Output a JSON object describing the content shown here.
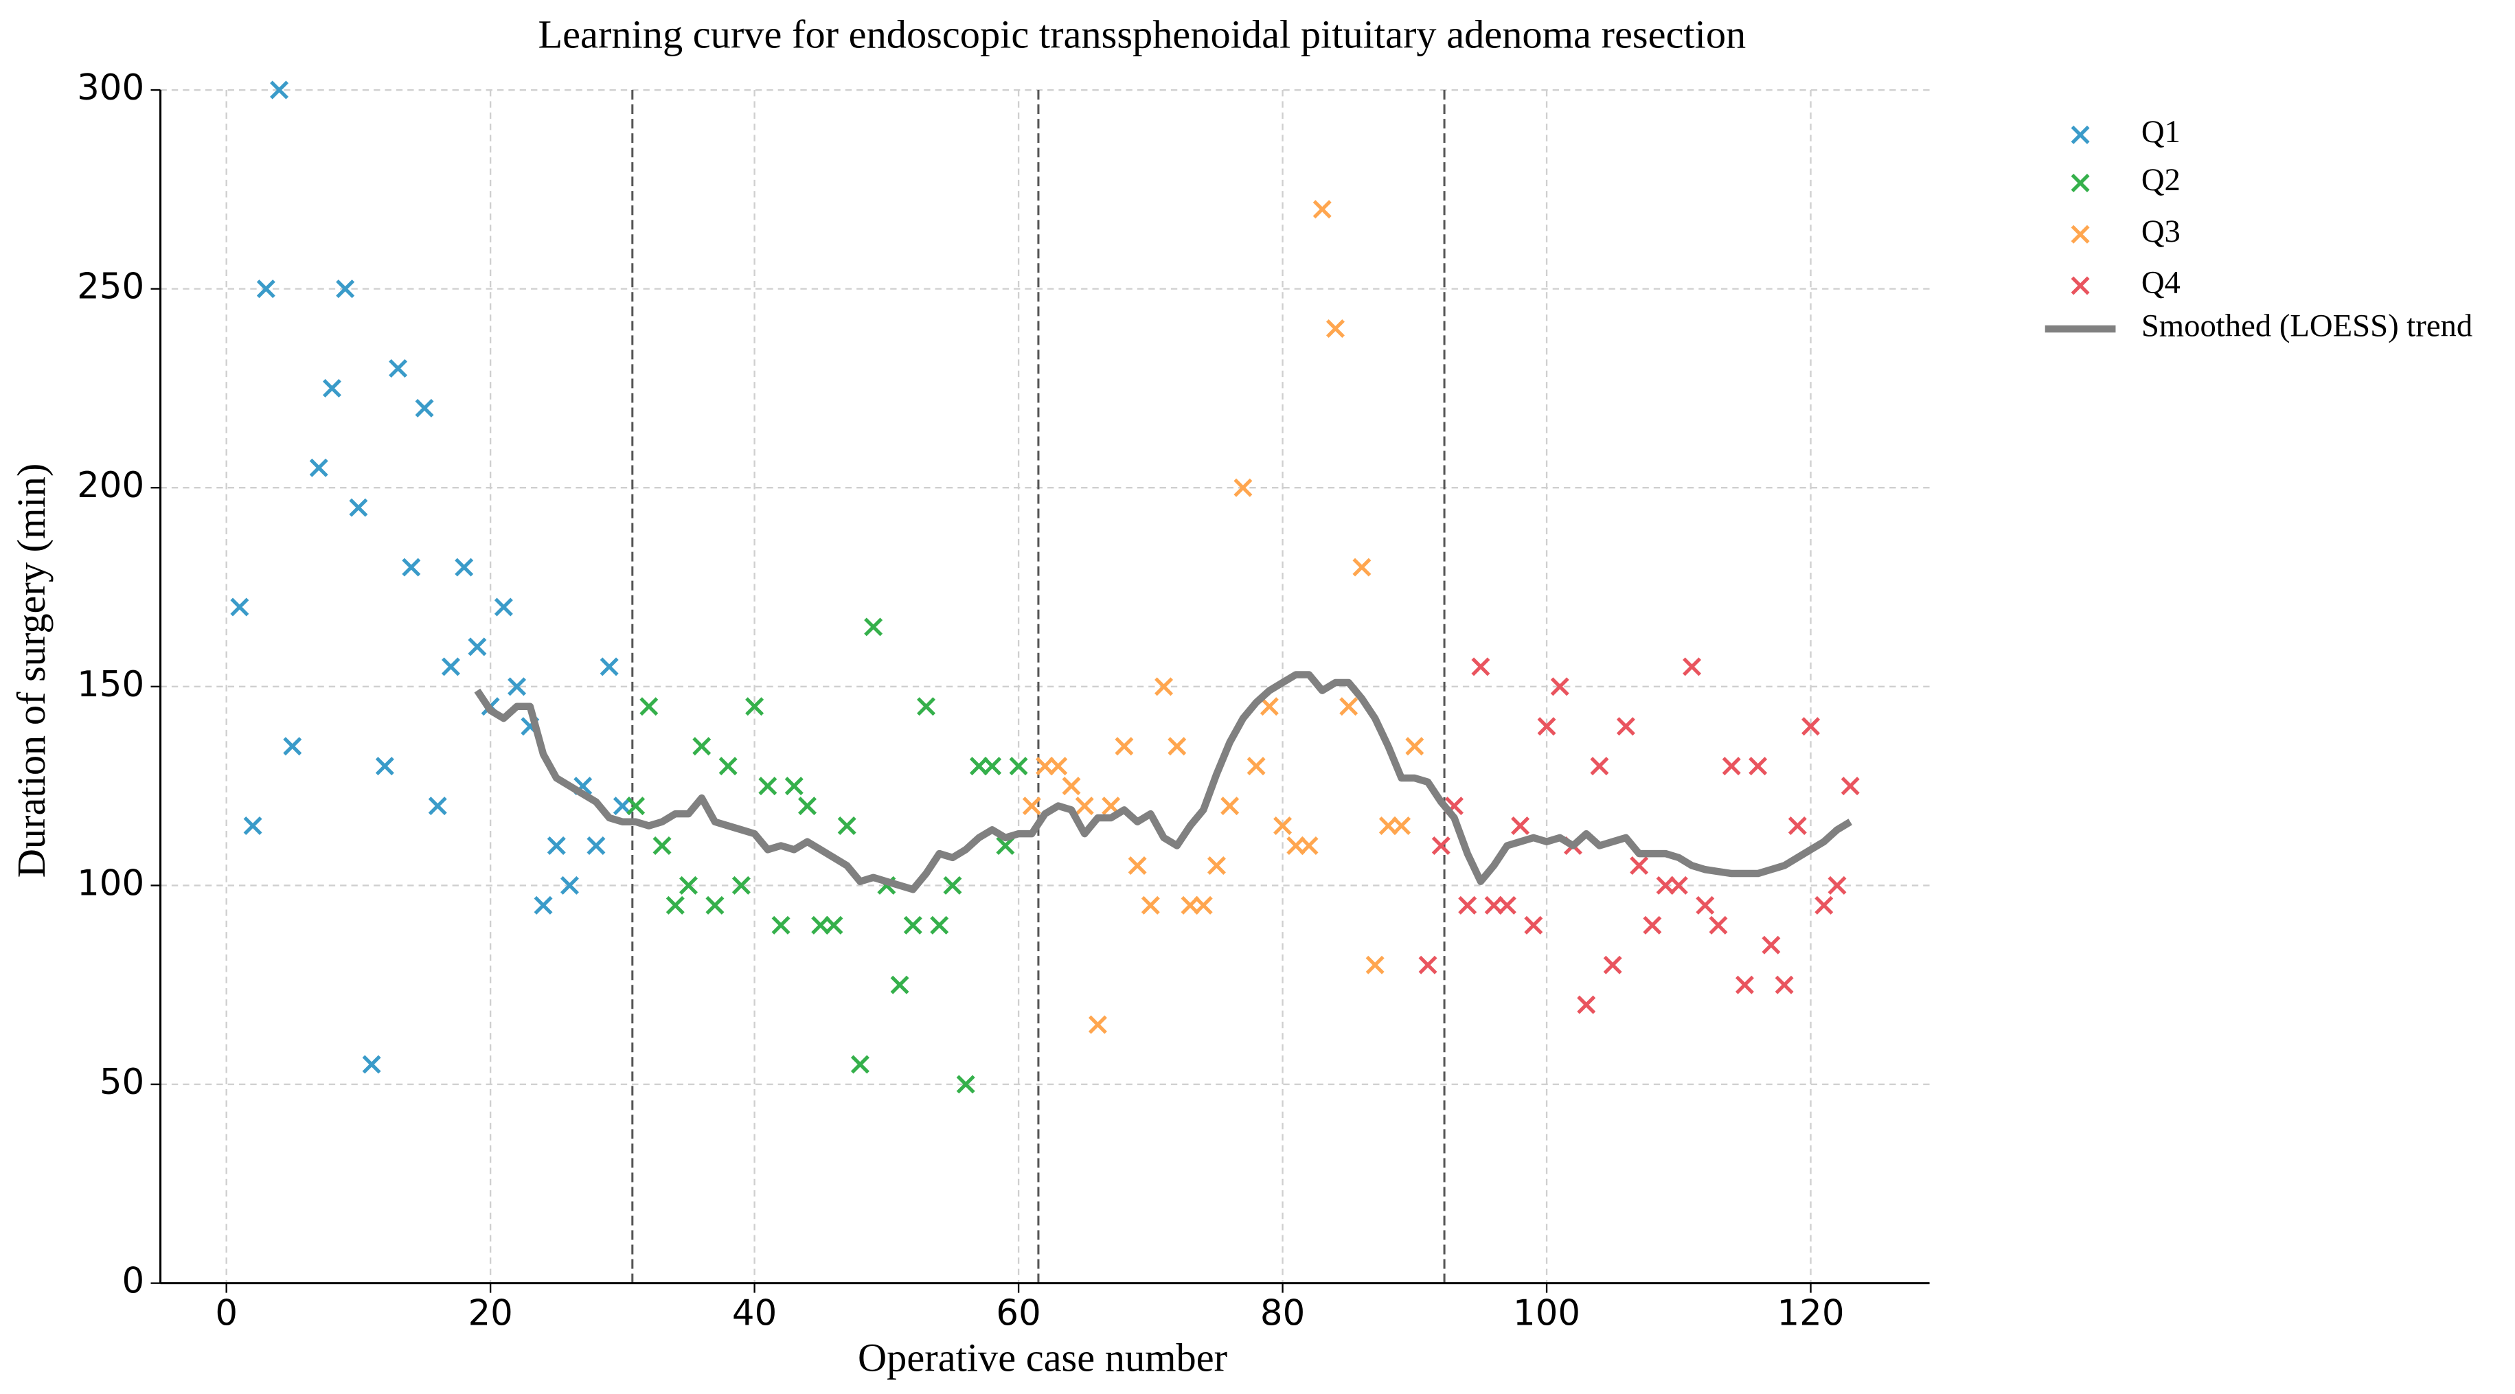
{
  "chart_data": {
    "type": "scatter",
    "title": "Learning curve for endoscopic transsphenoidal pituitary adenoma resection",
    "xlabel": "Operative case number",
    "ylabel": "Duration of surgery (min)",
    "xlim": [
      -5,
      129
    ],
    "ylim": [
      0,
      300
    ],
    "xticks": [
      0,
      20,
      40,
      60,
      80,
      100,
      120
    ],
    "yticks": [
      0,
      50,
      100,
      150,
      200,
      250,
      300
    ],
    "grid": true,
    "legend": "outside right",
    "vlines": [
      30.75,
      61.5,
      92.25
    ],
    "series": [
      {
        "name": "Q1",
        "color": "#3a9bc9",
        "marker": "x",
        "x": [
          1,
          2,
          3,
          4,
          5,
          7,
          8,
          9,
          10,
          11,
          12,
          13,
          14,
          15,
          16,
          17,
          18,
          19,
          20,
          21,
          22,
          23,
          24,
          25,
          26,
          27,
          28,
          29,
          30
        ],
        "values": [
          170,
          115,
          250,
          300,
          135,
          205,
          225,
          250,
          195,
          55,
          130,
          230,
          180,
          220,
          120,
          155,
          180,
          160,
          145,
          170,
          150,
          140,
          95,
          110,
          100,
          125,
          110,
          155,
          120
        ]
      },
      {
        "name": "Q2",
        "color": "#35b04b",
        "marker": "x",
        "x": [
          31,
          32,
          33,
          34,
          35,
          36,
          37,
          38,
          39,
          40,
          41,
          42,
          43,
          44,
          45,
          46,
          47,
          48,
          49,
          50,
          51,
          52,
          53,
          54,
          55,
          56,
          57,
          58,
          59,
          60
        ],
        "values": [
          120,
          145,
          110,
          95,
          100,
          135,
          95,
          130,
          100,
          145,
          125,
          90,
          125,
          120,
          90,
          90,
          115,
          55,
          165,
          100,
          75,
          90,
          145,
          90,
          100,
          50,
          130,
          130,
          110,
          130
        ]
      },
      {
        "name": "Q3",
        "color": "#ffa64f",
        "marker": "x",
        "x": [
          61,
          62,
          63,
          64,
          65,
          66,
          67,
          68,
          69,
          70,
          71,
          72,
          73,
          74,
          75,
          76,
          77,
          78,
          79,
          80,
          81,
          82,
          83,
          84,
          85,
          86,
          87,
          88,
          89,
          90
        ],
        "values": [
          120,
          130,
          130,
          125,
          120,
          65,
          120,
          135,
          105,
          95,
          150,
          135,
          95,
          95,
          105,
          120,
          200,
          130,
          145,
          115,
          110,
          110,
          270,
          240,
          145,
          180,
          80,
          115,
          115,
          135
        ]
      },
      {
        "name": "Q4",
        "color": "#e9545e",
        "marker": "x",
        "x": [
          91,
          92,
          93,
          94,
          95,
          96,
          97,
          98,
          99,
          100,
          101,
          102,
          103,
          104,
          105,
          106,
          107,
          108,
          109,
          110,
          111,
          112,
          113,
          114,
          115,
          116,
          117,
          118,
          119,
          120,
          121,
          122,
          123
        ],
        "values": [
          80,
          110,
          120,
          95,
          155,
          95,
          95,
          115,
          90,
          140,
          150,
          110,
          70,
          130,
          80,
          140,
          105,
          90,
          100,
          100,
          155,
          95,
          90,
          130,
          75,
          130,
          85,
          75,
          115,
          140,
          95,
          100,
          125
        ]
      },
      {
        "name": "Smoothed (LOESS) trend",
        "color": "#808080",
        "marker": "line",
        "x": [
          19,
          20,
          21,
          22,
          23,
          24,
          25,
          26,
          27,
          28,
          29,
          30,
          31,
          32,
          33,
          34,
          35,
          36,
          37,
          38,
          39,
          40,
          41,
          42,
          43,
          44,
          45,
          46,
          47,
          48,
          49,
          50,
          51,
          52,
          53,
          54,
          55,
          56,
          57,
          58,
          59,
          60,
          61,
          62,
          63,
          64,
          65,
          66,
          67,
          68,
          69,
          70,
          71,
          72,
          73,
          74,
          75,
          76,
          77,
          78,
          79,
          80,
          81,
          82,
          83,
          84,
          85,
          86,
          87,
          88,
          89,
          90,
          91,
          92,
          93,
          94,
          95,
          96,
          97,
          98,
          99,
          100,
          101,
          102,
          103,
          104,
          105,
          106,
          107,
          108,
          109,
          110,
          111,
          112,
          113,
          114,
          115,
          116,
          117,
          118,
          119,
          120,
          121,
          122,
          123
        ],
        "values": [
          149,
          144,
          142,
          145,
          145,
          133,
          127,
          125,
          123,
          121,
          117,
          116,
          116,
          115,
          116,
          118,
          118,
          122,
          116,
          115,
          114,
          113,
          109,
          110,
          109,
          111,
          109,
          107,
          105,
          101,
          102,
          101,
          100,
          99,
          103,
          108,
          107,
          109,
          112,
          114,
          112,
          113,
          113,
          118,
          120,
          119,
          113,
          117,
          117,
          119,
          116,
          118,
          112,
          110,
          115,
          119,
          128,
          136,
          142,
          146,
          149,
          151,
          153,
          153,
          149,
          151,
          151,
          147,
          142,
          135,
          127,
          127,
          126,
          121,
          117,
          108,
          101,
          105,
          110,
          111,
          112,
          111,
          112,
          110,
          113,
          110,
          111,
          112,
          108,
          108,
          108,
          107,
          105,
          104,
          103.5,
          103,
          103,
          103,
          104,
          105,
          107,
          109,
          111,
          114,
          116
        ]
      }
    ]
  }
}
